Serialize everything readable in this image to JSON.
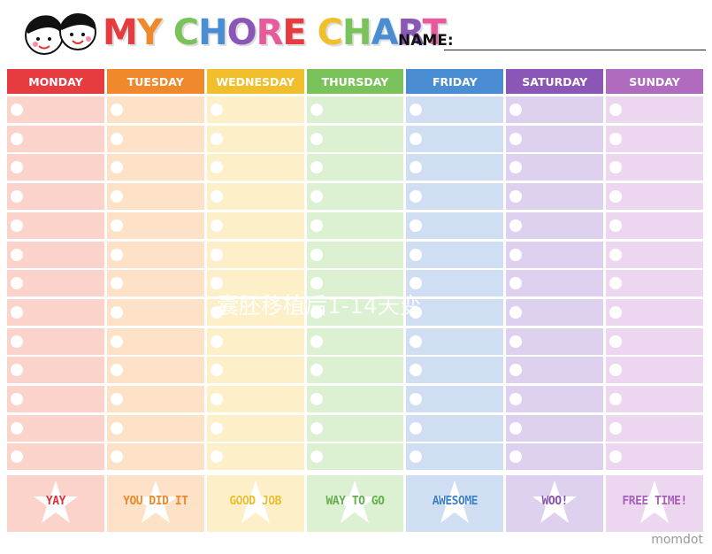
{
  "header": {
    "title": "MY CHORE CHART",
    "name_label": "NAME:"
  },
  "days": [
    {
      "name": "MONDAY",
      "color": "#e63b3f",
      "tint": "#fbd3cb",
      "footer": "YAY",
      "footer_color": "#d9343a"
    },
    {
      "name": "TUESDAY",
      "color": "#f0892b",
      "tint": "#fde2c8",
      "footer": "YOU DID IT",
      "footer_color": "#ec8a2b"
    },
    {
      "name": "WEDNESDAY",
      "color": "#f1bf2c",
      "tint": "#fdf0c8",
      "footer": "GOOD JOB",
      "footer_color": "#efbc2a"
    },
    {
      "name": "THURSDAY",
      "color": "#79c35a",
      "tint": "#dcf0d2",
      "footer": "WAY TO GO",
      "footer_color": "#63b04a"
    },
    {
      "name": "FRIDAY",
      "color": "#4a8dd3",
      "tint": "#d0def3",
      "footer": "AWESOME",
      "footer_color": "#3d7fc8"
    },
    {
      "name": "SATURDAY",
      "color": "#8b57b6",
      "tint": "#ddd1ef",
      "footer": "WOO!",
      "footer_color": "#8452b0"
    },
    {
      "name": "SUNDAY",
      "color": "#b06bbf",
      "tint": "#ecd6f0",
      "footer": "FREE TIME!",
      "footer_color": "#a85fba"
    }
  ],
  "watermark": "囊胚移植后1-14天变",
  "brand": "momdot"
}
